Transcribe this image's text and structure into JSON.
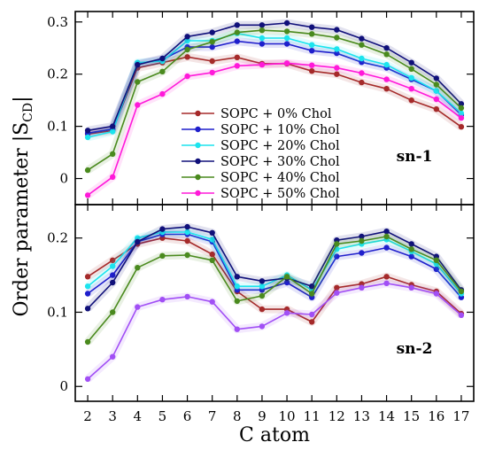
{
  "chart_data": {
    "type": "line",
    "x": [
      2,
      3,
      4,
      5,
      6,
      7,
      8,
      9,
      10,
      11,
      12,
      13,
      14,
      15,
      16,
      17
    ],
    "xlabel": "C atom",
    "ylabel": "Order parameter |S",
    "ylabel_subscript": "CD",
    "ylabel_suffix": "|",
    "legend_placement": "center (inside top panel)",
    "grid": false,
    "panels": [
      {
        "tag": "sn-1",
        "ylim": [
          -0.05,
          0.32
        ],
        "yticks": [
          0,
          0.1,
          0.2,
          0.3
        ],
        "ytick_labels": [
          "0",
          "0.1",
          "0.2",
          "0.3"
        ],
        "series": [
          {
            "name": "SOPC + 0% Chol",
            "color": "#a52a2a",
            "values": [
              0.085,
              0.092,
              0.212,
              0.222,
              0.233,
              0.225,
              0.232,
              0.22,
              0.22,
              0.206,
              0.2,
              0.184,
              0.172,
              0.15,
              0.133,
              0.099
            ]
          },
          {
            "name": "SOPC + 10% Chol",
            "color": "#1f1fcc",
            "values": [
              0.087,
              0.095,
              0.22,
              0.228,
              0.252,
              0.252,
              0.263,
              0.258,
              0.258,
              0.245,
              0.24,
              0.223,
              0.212,
              0.19,
              0.168,
              0.122
            ]
          },
          {
            "name": "SOPC + 20% Chol",
            "color": "#1ce4ee",
            "values": [
              0.079,
              0.09,
              0.222,
              0.225,
              0.264,
              0.264,
              0.278,
              0.269,
              0.269,
              0.256,
              0.248,
              0.23,
              0.218,
              0.193,
              0.168,
              0.125
            ]
          },
          {
            "name": "SOPC + 30% Chol",
            "color": "#10107a",
            "values": [
              0.092,
              0.1,
              0.218,
              0.23,
              0.272,
              0.28,
              0.294,
              0.294,
              0.298,
              0.29,
              0.285,
              0.268,
              0.25,
              0.222,
              0.192,
              0.143
            ]
          },
          {
            "name": "SOPC + 40% Chol",
            "color": "#4a8a1e",
            "values": [
              0.016,
              0.047,
              0.185,
              0.205,
              0.247,
              0.262,
              0.28,
              0.284,
              0.282,
              0.277,
              0.27,
              0.256,
              0.238,
              0.21,
              0.18,
              0.135
            ]
          },
          {
            "name": "SOPC + 50% Chol",
            "color": "#ff19d9",
            "values": [
              -0.032,
              0.003,
              0.141,
              0.162,
              0.196,
              0.203,
              0.216,
              0.218,
              0.221,
              0.217,
              0.212,
              0.202,
              0.19,
              0.172,
              0.152,
              0.116
            ]
          }
        ]
      },
      {
        "tag": "sn-2",
        "ylim": [
          -0.02,
          0.245
        ],
        "yticks": [
          0,
          0.1,
          0.2
        ],
        "ytick_labels": [
          "0",
          "0.1",
          "0.2"
        ],
        "series": [
          {
            "name": "SOPC + 0% Chol",
            "color": "#a52a2a",
            "values": [
              0.148,
              0.17,
              0.192,
              0.2,
              0.196,
              0.178,
              0.128,
              0.104,
              0.104,
              0.087,
              0.133,
              0.138,
              0.148,
              0.137,
              0.128,
              0.098
            ]
          },
          {
            "name": "SOPC + 10% Chol",
            "color": "#1f1fcc",
            "values": [
              0.125,
              0.15,
              0.195,
              0.205,
              0.205,
              0.195,
              0.13,
              0.13,
              0.14,
              0.12,
              0.175,
              0.18,
              0.187,
              0.175,
              0.158,
              0.12
            ]
          },
          {
            "name": "SOPC + 20% Chol",
            "color": "#1ce4ee",
            "values": [
              0.135,
              0.162,
              0.2,
              0.208,
              0.208,
              0.198,
              0.135,
              0.135,
              0.15,
              0.13,
              0.185,
              0.192,
              0.198,
              0.182,
              0.165,
              0.125
            ]
          },
          {
            "name": "SOPC + 30% Chol",
            "color": "#10107a",
            "values": [
              0.105,
              0.14,
              0.195,
              0.212,
              0.215,
              0.207,
              0.148,
              0.142,
              0.146,
              0.135,
              0.197,
              0.202,
              0.209,
              0.192,
              0.175,
              0.13
            ]
          },
          {
            "name": "SOPC + 40% Chol",
            "color": "#4a8a1e",
            "values": [
              0.06,
              0.1,
              0.16,
              0.176,
              0.177,
              0.17,
              0.115,
              0.122,
              0.148,
              0.125,
              0.192,
              0.196,
              0.202,
              0.185,
              0.17,
              0.128
            ]
          },
          {
            "name": "SOPC + 50% Chol",
            "color": "#a14ff5",
            "values": [
              0.01,
              0.04,
              0.107,
              0.117,
              0.121,
              0.114,
              0.077,
              0.081,
              0.099,
              0.097,
              0.126,
              0.133,
              0.139,
              0.133,
              0.125,
              0.096
            ]
          }
        ]
      }
    ]
  }
}
